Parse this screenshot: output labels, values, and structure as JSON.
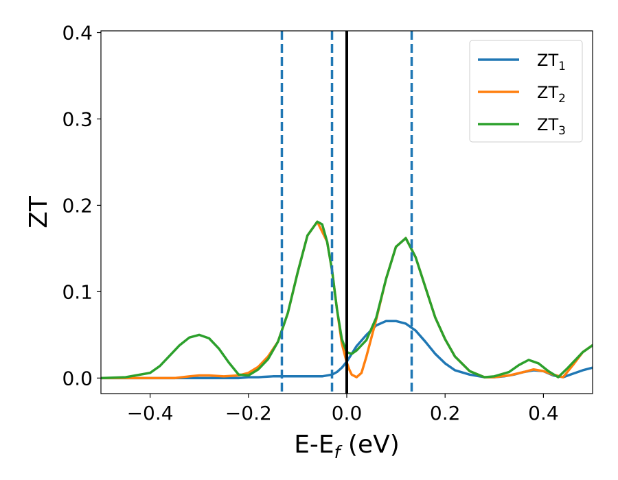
{
  "chart_data": {
    "type": "line",
    "xlabel": "E-E",
    "xlabel_sub": "f",
    "xlabel_suffix": " (eV)",
    "ylabel": "ZT",
    "xlim": [
      -0.5,
      0.5
    ],
    "ylim": [
      -0.018,
      0.402
    ],
    "xticks": [
      -0.4,
      -0.2,
      0.0,
      0.2,
      0.4
    ],
    "xtick_labels": [
      "−0.4",
      "−0.2",
      "0.0",
      "0.2",
      "0.4"
    ],
    "yticks": [
      0.0,
      0.1,
      0.2,
      0.3,
      0.4
    ],
    "ytick_labels": [
      "0.0",
      "0.1",
      "0.2",
      "0.3",
      "0.4"
    ],
    "legend_position": "top-right",
    "series": [
      {
        "name": "ZT",
        "name_sub": "1",
        "color": "#1f77b4",
        "x": [
          -0.5,
          -0.4,
          -0.3,
          -0.25,
          -0.22,
          -0.2,
          -0.18,
          -0.15,
          -0.1,
          -0.05,
          -0.03,
          -0.02,
          -0.01,
          0.0,
          0.01,
          0.02,
          0.04,
          0.06,
          0.08,
          0.1,
          0.12,
          0.14,
          0.16,
          0.18,
          0.2,
          0.22,
          0.25,
          0.28,
          0.3,
          0.32,
          0.34,
          0.36,
          0.38,
          0.4,
          0.42,
          0.44,
          0.46,
          0.48,
          0.5
        ],
        "y": [
          0.0,
          0.0,
          0.0,
          0.0,
          0.0,
          0.001,
          0.001,
          0.002,
          0.002,
          0.002,
          0.004,
          0.007,
          0.012,
          0.019,
          0.028,
          0.037,
          0.05,
          0.061,
          0.066,
          0.066,
          0.063,
          0.055,
          0.042,
          0.028,
          0.017,
          0.009,
          0.004,
          0.001,
          0.001,
          0.002,
          0.004,
          0.007,
          0.009,
          0.008,
          0.003,
          0.001,
          0.005,
          0.009,
          0.012
        ]
      },
      {
        "name": "ZT",
        "name_sub": "2",
        "color": "#ff7f0e",
        "x": [
          -0.5,
          -0.45,
          -0.4,
          -0.35,
          -0.32,
          -0.3,
          -0.28,
          -0.25,
          -0.22,
          -0.2,
          -0.18,
          -0.16,
          -0.14,
          -0.12,
          -0.1,
          -0.08,
          -0.06,
          -0.04,
          -0.03,
          -0.02,
          -0.01,
          0.0,
          0.005,
          0.01,
          0.02,
          0.03,
          0.04,
          0.06,
          0.08,
          0.1,
          0.12,
          0.14,
          0.16,
          0.18,
          0.2,
          0.22,
          0.25,
          0.28,
          0.3,
          0.33,
          0.36,
          0.38,
          0.4,
          0.42,
          0.44,
          0.46,
          0.48,
          0.5
        ],
        "y": [
          0.0,
          0.0,
          0.0,
          0.0,
          0.002,
          0.003,
          0.003,
          0.002,
          0.003,
          0.006,
          0.013,
          0.025,
          0.042,
          0.075,
          0.122,
          0.165,
          0.181,
          0.158,
          0.125,
          0.08,
          0.04,
          0.018,
          0.01,
          0.004,
          0.001,
          0.006,
          0.025,
          0.068,
          0.115,
          0.152,
          0.162,
          0.14,
          0.105,
          0.07,
          0.045,
          0.025,
          0.008,
          0.001,
          0.001,
          0.003,
          0.007,
          0.01,
          0.008,
          0.004,
          0.001,
          0.015,
          0.03,
          0.038
        ]
      },
      {
        "name": "ZT",
        "name_sub": "3",
        "color": "#2ca02c",
        "x": [
          -0.5,
          -0.45,
          -0.4,
          -0.38,
          -0.36,
          -0.34,
          -0.32,
          -0.3,
          -0.28,
          -0.26,
          -0.24,
          -0.22,
          -0.2,
          -0.18,
          -0.16,
          -0.14,
          -0.12,
          -0.1,
          -0.08,
          -0.06,
          -0.05,
          -0.04,
          -0.03,
          -0.02,
          -0.01,
          0.0,
          0.01,
          0.02,
          0.03,
          0.04,
          0.06,
          0.08,
          0.1,
          0.12,
          0.14,
          0.16,
          0.18,
          0.2,
          0.22,
          0.25,
          0.28,
          0.3,
          0.33,
          0.35,
          0.37,
          0.39,
          0.41,
          0.43,
          0.45,
          0.48,
          0.5
        ],
        "y": [
          0.0,
          0.001,
          0.006,
          0.014,
          0.026,
          0.038,
          0.047,
          0.05,
          0.046,
          0.034,
          0.018,
          0.004,
          0.003,
          0.01,
          0.022,
          0.042,
          0.075,
          0.122,
          0.165,
          0.181,
          0.178,
          0.158,
          0.125,
          0.08,
          0.045,
          0.03,
          0.028,
          0.032,
          0.038,
          0.044,
          0.07,
          0.115,
          0.152,
          0.162,
          0.14,
          0.105,
          0.07,
          0.045,
          0.025,
          0.008,
          0.001,
          0.002,
          0.007,
          0.015,
          0.021,
          0.017,
          0.008,
          0.001,
          0.012,
          0.03,
          0.038
        ]
      }
    ],
    "vlines": [
      {
        "x": -0.132,
        "style": "dashed",
        "color": "#1f77b4"
      },
      {
        "x": -0.03,
        "style": "dashed",
        "color": "#1f77b4"
      },
      {
        "x": 0.0,
        "style": "solid",
        "color": "#000000"
      },
      {
        "x": 0.132,
        "style": "dashed",
        "color": "#1f77b4"
      }
    ]
  }
}
